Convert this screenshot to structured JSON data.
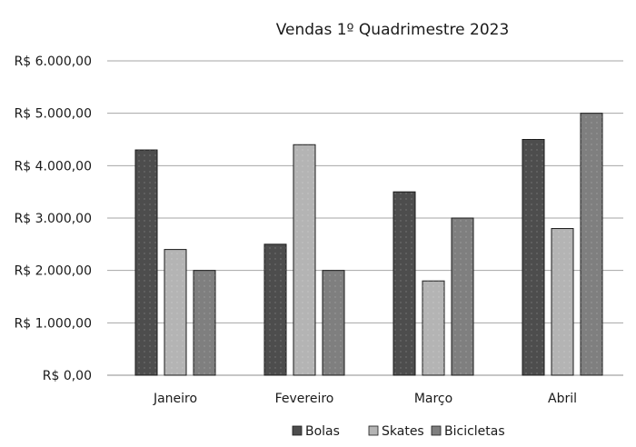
{
  "chart_data": {
    "type": "bar",
    "title": "Vendas 1º Quadrimestre 2023",
    "categories": [
      "Janeiro",
      "Fevereiro",
      "Março",
      "Abril"
    ],
    "series": [
      {
        "name": "Bolas",
        "values": [
          4300,
          2500,
          3500,
          4500
        ],
        "color": "#4d4d4d"
      },
      {
        "name": "Skates",
        "values": [
          2400,
          4400,
          1800,
          2800
        ],
        "color": "#b4b4b4"
      },
      {
        "name": "Bicicletas",
        "values": [
          2000,
          2000,
          3000,
          5000
        ],
        "color": "#7f7f7f"
      }
    ],
    "ylim": [
      0,
      6000
    ],
    "ytick_labels": [
      "R$ 0,00",
      "R$ 1.000,00",
      "R$ 2.000,00",
      "R$ 3.000,00",
      "R$ 4.000,00",
      "R$ 5.000,00",
      "R$ 6.000,00"
    ],
    "grid": true,
    "legend": "bottom"
  }
}
